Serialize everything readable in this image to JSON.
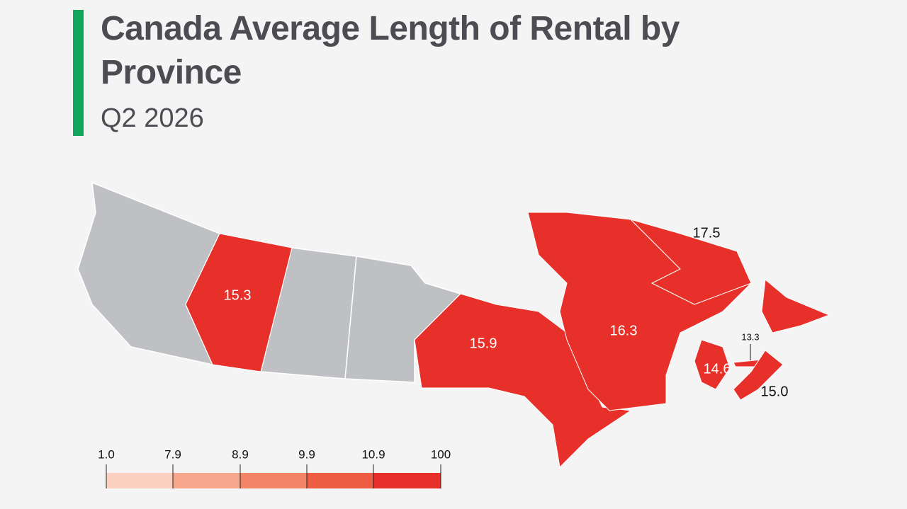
{
  "chart_data": {
    "type": "map",
    "title": "Canada Average Length of Rental by Province",
    "subtitle": "Q2 2026",
    "values": [
      15.3,
      15.9,
      16.3,
      17.5,
      13.3,
      14.6,
      15.0
    ],
    "value_labels": [
      "15.3",
      "15.9",
      "16.3",
      "17.5",
      "13.3",
      "14.6",
      "15.0"
    ],
    "legend_ticks": [
      {
        "value": 1,
        "label": "1.0"
      },
      7.9,
      8.9,
      9.9,
      10.9,
      100
    ],
    "legend_colors": [
      "#fcd0c0",
      "#f6a78c",
      "#f28566",
      "#ec5d44",
      "#e8302a"
    ],
    "no_data_color": "#bfc0c4"
  }
}
